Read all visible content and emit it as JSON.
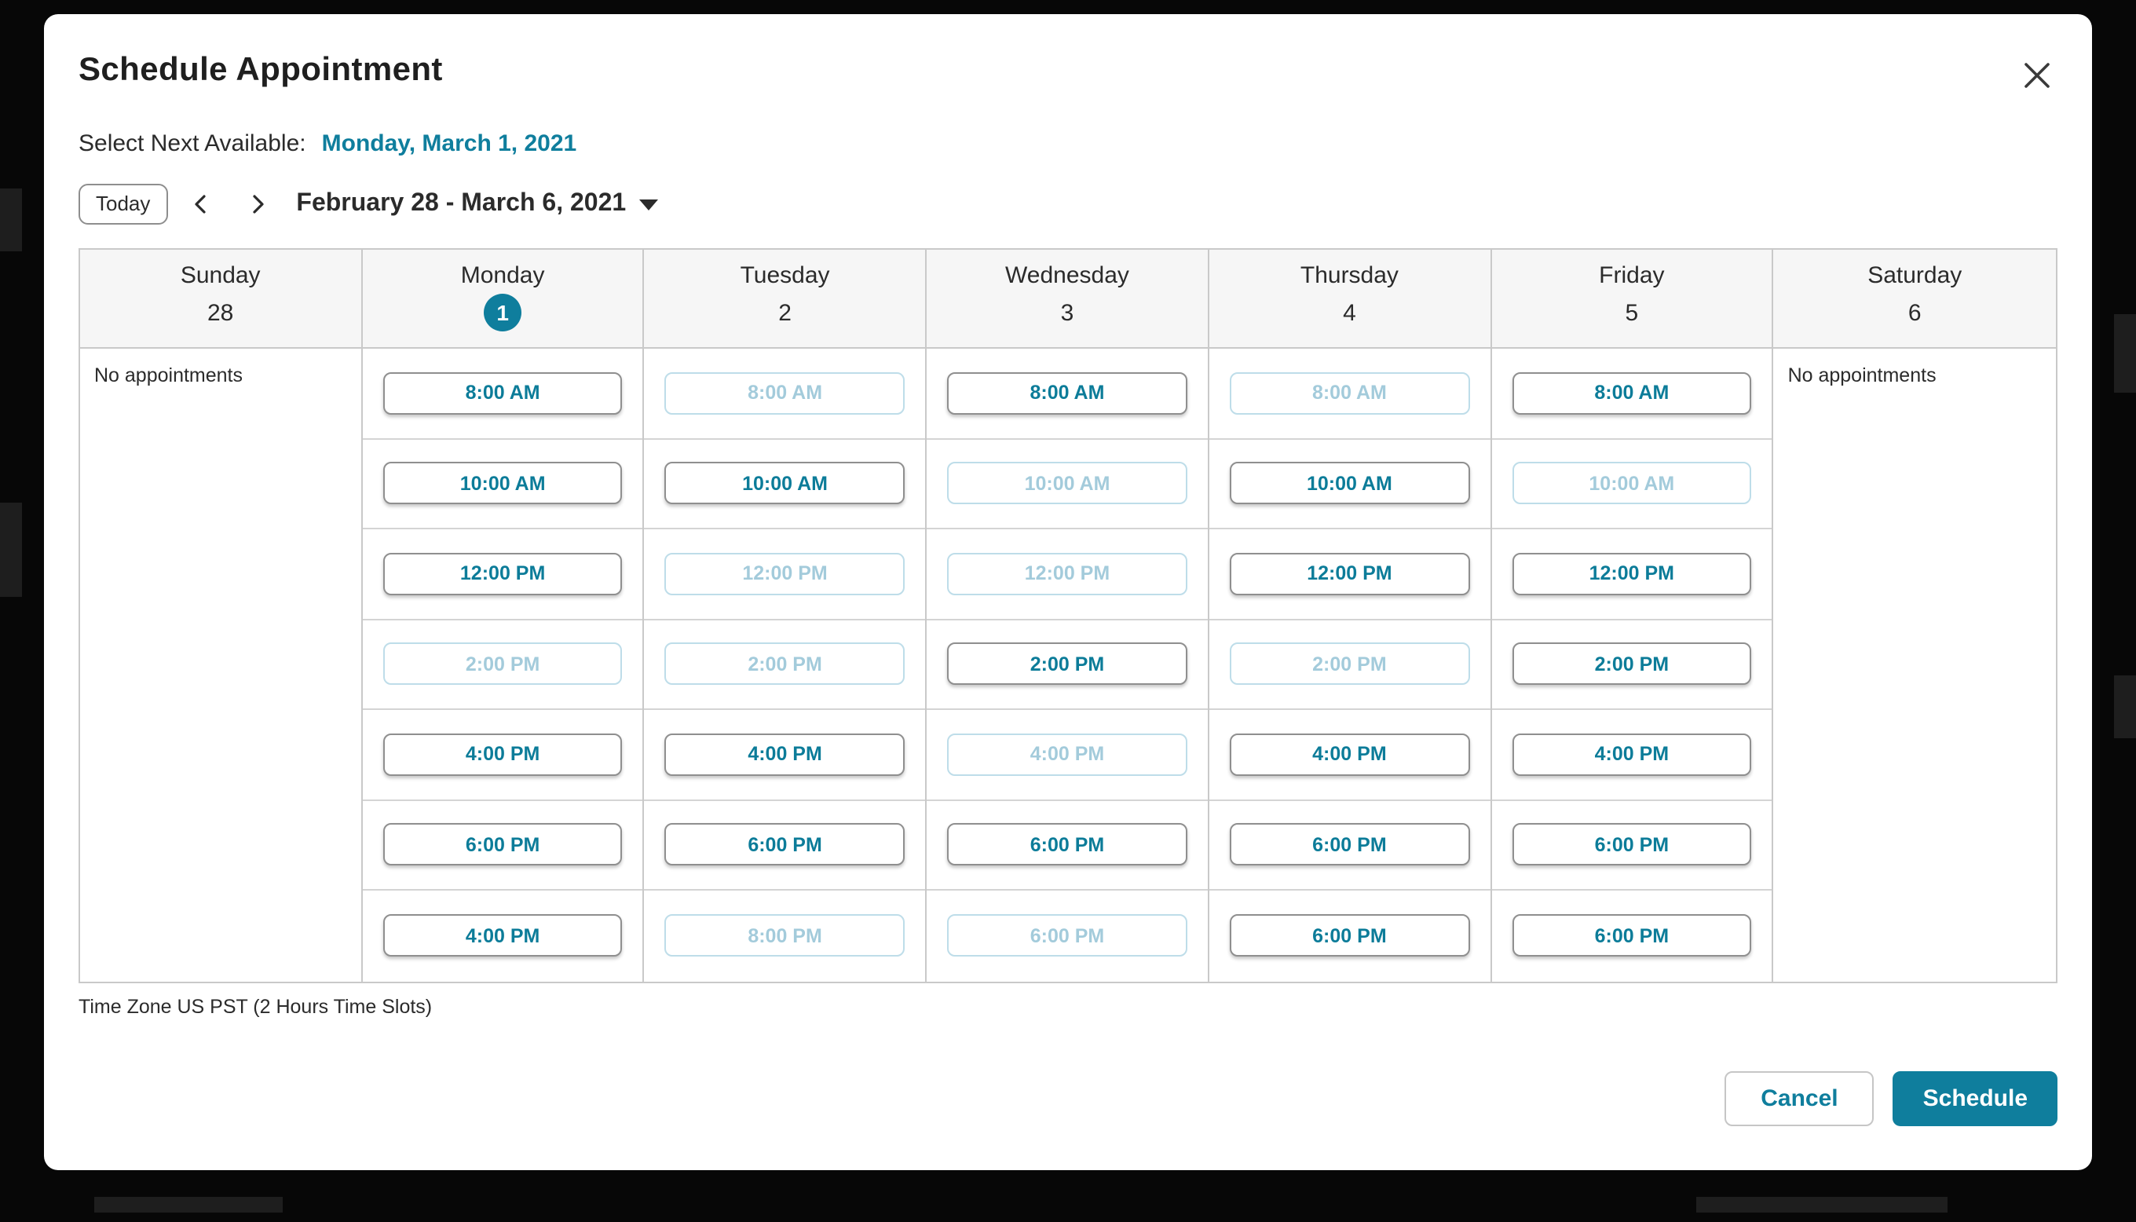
{
  "modal": {
    "title": "Schedule Appointment",
    "next_available_label": "Select Next Available:",
    "next_available_link": "Monday, March 1, 2021",
    "today_button": "Today",
    "week_range": "February 28 - March 6, 2021",
    "timezone_note": "Time Zone US PST (2 Hours Time Slots)",
    "cancel_label": "Cancel",
    "schedule_label": "Schedule"
  },
  "colors": {
    "accent_teal": "#0f7e9d",
    "disabled_slot_border": "#bedde9",
    "disabled_slot_text": "#a3cbdb",
    "grid_border": "#c9c9c9",
    "header_bg": "#f6f6f6"
  },
  "icons": {
    "close": "close-icon",
    "chevron_left": "chevron-left-icon",
    "chevron_right": "chevron-right-icon",
    "caret_down": "caret-down-icon"
  },
  "calendar": {
    "no_appointments": "No appointments",
    "days": [
      {
        "name": "Sunday",
        "date": "28",
        "selected": false,
        "slots": null
      },
      {
        "name": "Monday",
        "date": "1",
        "selected": true,
        "slots": [
          {
            "label": "8:00 AM",
            "enabled": true
          },
          {
            "label": "10:00 AM",
            "enabled": true
          },
          {
            "label": "12:00 PM",
            "enabled": true
          },
          {
            "label": "2:00 PM",
            "enabled": false
          },
          {
            "label": "4:00 PM",
            "enabled": true
          },
          {
            "label": "6:00 PM",
            "enabled": true
          },
          {
            "label": "4:00 PM",
            "enabled": true
          }
        ]
      },
      {
        "name": "Tuesday",
        "date": "2",
        "selected": false,
        "slots": [
          {
            "label": "8:00 AM",
            "enabled": false
          },
          {
            "label": "10:00 AM",
            "enabled": true
          },
          {
            "label": "12:00 PM",
            "enabled": false
          },
          {
            "label": "2:00 PM",
            "enabled": false
          },
          {
            "label": "4:00 PM",
            "enabled": true
          },
          {
            "label": "6:00 PM",
            "enabled": true
          },
          {
            "label": "8:00 PM",
            "enabled": false
          }
        ]
      },
      {
        "name": "Wednesday",
        "date": "3",
        "selected": false,
        "slots": [
          {
            "label": "8:00 AM",
            "enabled": true
          },
          {
            "label": "10:00 AM",
            "enabled": false
          },
          {
            "label": "12:00 PM",
            "enabled": false
          },
          {
            "label": "2:00 PM",
            "enabled": true
          },
          {
            "label": "4:00 PM",
            "enabled": false
          },
          {
            "label": "6:00 PM",
            "enabled": true
          },
          {
            "label": "6:00 PM",
            "enabled": false
          }
        ]
      },
      {
        "name": "Thursday",
        "date": "4",
        "selected": false,
        "slots": [
          {
            "label": "8:00 AM",
            "enabled": false
          },
          {
            "label": "10:00 AM",
            "enabled": true
          },
          {
            "label": "12:00 PM",
            "enabled": true
          },
          {
            "label": "2:00 PM",
            "enabled": false
          },
          {
            "label": "4:00 PM",
            "enabled": true
          },
          {
            "label": "6:00 PM",
            "enabled": true
          },
          {
            "label": "6:00 PM",
            "enabled": true
          }
        ]
      },
      {
        "name": "Friday",
        "date": "5",
        "selected": false,
        "slots": [
          {
            "label": "8:00 AM",
            "enabled": true
          },
          {
            "label": "10:00 AM",
            "enabled": false
          },
          {
            "label": "12:00 PM",
            "enabled": true
          },
          {
            "label": "2:00 PM",
            "enabled": true
          },
          {
            "label": "4:00 PM",
            "enabled": true
          },
          {
            "label": "6:00 PM",
            "enabled": true
          },
          {
            "label": "6:00 PM",
            "enabled": true
          }
        ]
      },
      {
        "name": "Saturday",
        "date": "6",
        "selected": false,
        "slots": null
      }
    ]
  }
}
